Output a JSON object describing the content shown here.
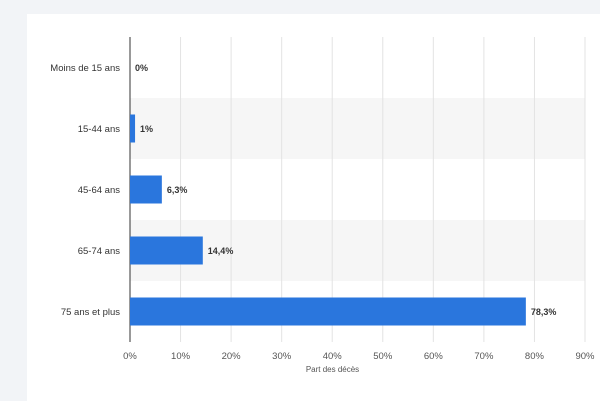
{
  "chart_data": {
    "type": "bar",
    "orientation": "horizontal",
    "categories": [
      "Moins de 15 ans",
      "15-44 ans",
      "45-64 ans",
      "65-74 ans",
      "75 ans et plus"
    ],
    "values": [
      0,
      1,
      6.3,
      14.4,
      78.3
    ],
    "value_labels": [
      "0%",
      "1%",
      "6,3%",
      "14,4%",
      "78,3%"
    ],
    "xlabel": "Part des décès",
    "xlim": [
      0,
      90
    ],
    "xticks": [
      "0%",
      "10%",
      "20%",
      "30%",
      "40%",
      "50%",
      "60%",
      "70%",
      "80%",
      "90%"
    ],
    "grid": true,
    "colors": {
      "bar": "#2a76dd",
      "band": "#f6f6f6",
      "grid": "#e3e3e3"
    }
  }
}
